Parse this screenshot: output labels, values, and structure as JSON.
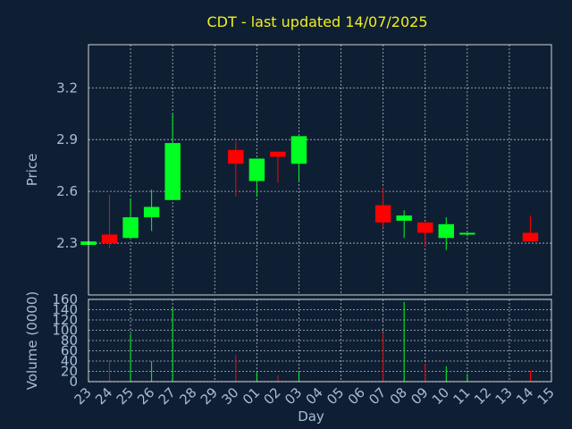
{
  "chart_data": [
    {
      "type": "candlestick",
      "title": "CDT - last updated 14/07/2025",
      "xlabel": "",
      "ylabel": "Price",
      "ylim": [
        2.0,
        3.45
      ],
      "yticks": [
        "2.3",
        "2.6",
        "2.9",
        "3.2"
      ],
      "grid": true,
      "up_color": "#00ff22",
      "down_color": "#ff0000",
      "categories": [
        "23",
        "24",
        "25",
        "26",
        "27",
        "28",
        "29",
        "30",
        "01",
        "02",
        "03",
        "04",
        "05",
        "06",
        "07",
        "08",
        "09",
        "10",
        "11",
        "12",
        "13",
        "14",
        "15"
      ],
      "candles": [
        {
          "x": "23",
          "open": 2.29,
          "close": 2.31,
          "high": 2.31,
          "low": 2.29
        },
        {
          "x": "24",
          "open": 2.35,
          "close": 2.3,
          "high": 2.58,
          "low": 2.27
        },
        {
          "x": "25",
          "open": 2.33,
          "close": 2.45,
          "high": 2.56,
          "low": 2.33
        },
        {
          "x": "26",
          "open": 2.45,
          "close": 2.51,
          "high": 2.61,
          "low": 2.37
        },
        {
          "x": "27",
          "open": 2.55,
          "close": 2.88,
          "high": 3.05,
          "low": 2.55
        },
        {
          "x": "30",
          "open": 2.84,
          "close": 2.76,
          "high": 2.89,
          "low": 2.57
        },
        {
          "x": "01",
          "open": 2.66,
          "close": 2.79,
          "high": 2.79,
          "low": 2.57
        },
        {
          "x": "02",
          "open": 2.83,
          "close": 2.8,
          "high": 2.83,
          "low": 2.65
        },
        {
          "x": "03",
          "open": 2.76,
          "close": 2.92,
          "high": 2.92,
          "low": 2.66
        },
        {
          "x": "07",
          "open": 2.52,
          "close": 2.42,
          "high": 2.62,
          "low": 2.39
        },
        {
          "x": "08",
          "open": 2.43,
          "close": 2.46,
          "high": 2.49,
          "low": 2.33
        },
        {
          "x": "09",
          "open": 2.42,
          "close": 2.36,
          "high": 2.42,
          "low": 2.28
        },
        {
          "x": "10",
          "open": 2.33,
          "close": 2.41,
          "high": 2.45,
          "low": 2.26
        },
        {
          "x": "11",
          "open": 2.35,
          "close": 2.36,
          "high": 2.36,
          "low": 2.34
        },
        {
          "x": "14",
          "open": 2.36,
          "close": 2.31,
          "high": 2.46,
          "low": 2.31
        }
      ]
    },
    {
      "type": "bar",
      "title": "",
      "xlabel": "Day",
      "ylabel": "Volume (0000)",
      "ylim": [
        0,
        160
      ],
      "yticks": [
        "0",
        "20",
        "40",
        "60",
        "80",
        "100",
        "120",
        "140",
        "160"
      ],
      "grid": true,
      "categories": [
        "23",
        "24",
        "25",
        "26",
        "27",
        "28",
        "29",
        "30",
        "01",
        "02",
        "03",
        "04",
        "05",
        "06",
        "07",
        "08",
        "09",
        "10",
        "11",
        "12",
        "13",
        "14",
        "15"
      ],
      "volumes": [
        {
          "x": "24",
          "value": 42,
          "direction": "down"
        },
        {
          "x": "25",
          "value": 93,
          "direction": "up"
        },
        {
          "x": "26",
          "value": 40,
          "direction": "up"
        },
        {
          "x": "27",
          "value": 143,
          "direction": "up"
        },
        {
          "x": "30",
          "value": 52,
          "direction": "down"
        },
        {
          "x": "01",
          "value": 18,
          "direction": "up"
        },
        {
          "x": "02",
          "value": 12,
          "direction": "down"
        },
        {
          "x": "03",
          "value": 18,
          "direction": "up"
        },
        {
          "x": "07",
          "value": 95,
          "direction": "down"
        },
        {
          "x": "08",
          "value": 155,
          "direction": "up"
        },
        {
          "x": "09",
          "value": 35,
          "direction": "down"
        },
        {
          "x": "10",
          "value": 30,
          "direction": "up"
        },
        {
          "x": "11",
          "value": 15,
          "direction": "up"
        },
        {
          "x": "14",
          "value": 22,
          "direction": "down"
        }
      ]
    }
  ]
}
